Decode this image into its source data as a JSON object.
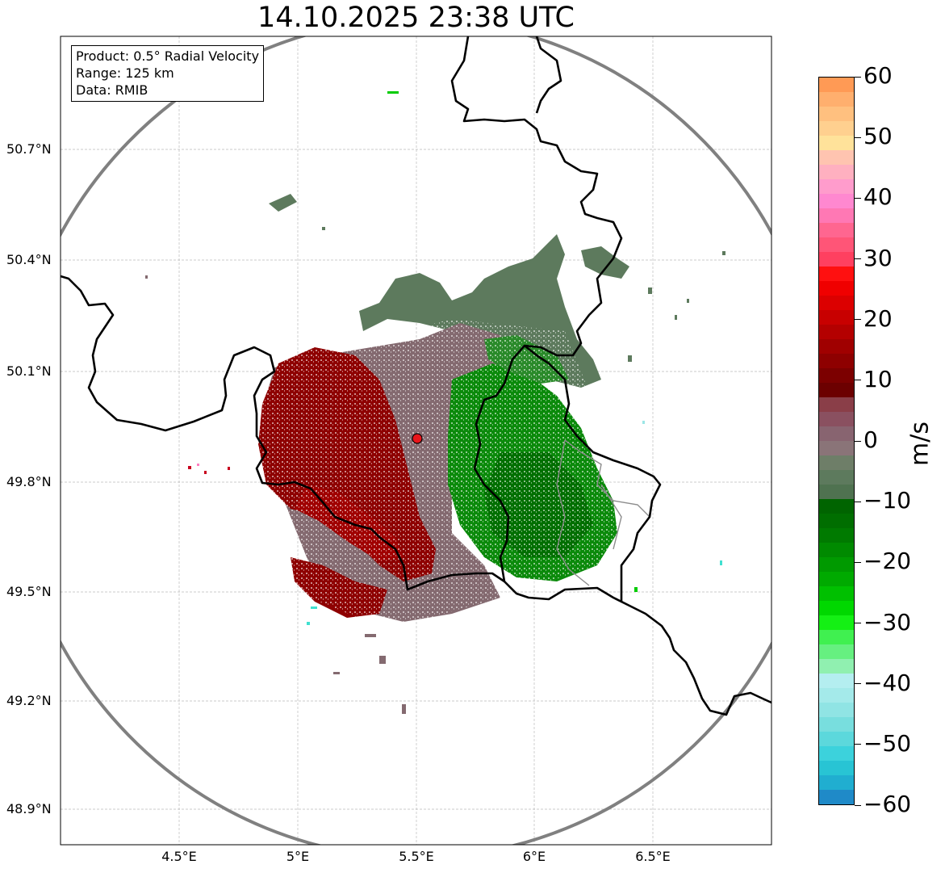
{
  "title": "14.10.2025 23:38 UTC",
  "info_box": {
    "product": "Product: 0.5° Radial Velocity",
    "range": "Range: 125 km",
    "data": "Data: RMIB"
  },
  "axes": {
    "lat_labels": [
      "50.7°N",
      "50.4°N",
      "50.1°N",
      "49.8°N",
      "49.5°N",
      "49.2°N",
      "48.9°N"
    ],
    "lon_labels": [
      "4.5°E",
      "5°E",
      "5.5°E",
      "6°E",
      "6.5°E"
    ],
    "lat_values": [
      50.7,
      50.4,
      50.1,
      49.8,
      49.5,
      49.2,
      48.9
    ],
    "lon_values": [
      4.5,
      5.0,
      5.5,
      6.0,
      6.5
    ]
  },
  "radar_site": {
    "lon": 5.505,
    "lat": 49.914,
    "color": "#e8151b"
  },
  "colorbar": {
    "unit": "m/s",
    "min": -60,
    "max": 60,
    "tick_labels": [
      "60",
      "50",
      "40",
      "30",
      "20",
      "10",
      "0",
      "−10",
      "−20",
      "−30",
      "−40",
      "−50",
      "−60"
    ],
    "tick_values": [
      60,
      50,
      40,
      30,
      20,
      10,
      0,
      -10,
      -20,
      -30,
      -40,
      -50,
      -60
    ]
  },
  "legend_colors": {
    "receding_strong": "#ff3b3b",
    "receding": "#9b0000",
    "near_zero_pos": "#8a6b73",
    "near_zero_neg": "#5f7a5f",
    "approaching": "#0a8a0a",
    "approaching_strong": "#00cc00"
  }
}
